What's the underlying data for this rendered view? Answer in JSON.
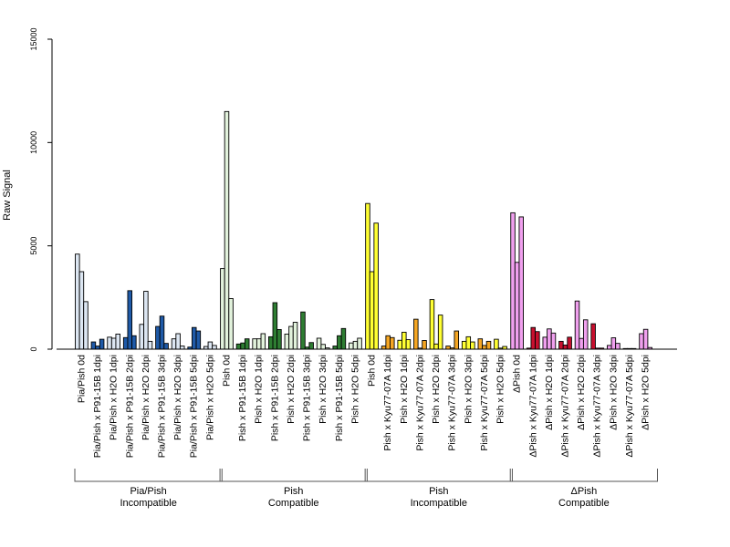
{
  "chart_data": {
    "type": "bar",
    "ylabel": "Raw Signal",
    "ylim": [
      0,
      15000
    ],
    "yticks": [
      0,
      5000,
      10000,
      15000
    ],
    "grid": false,
    "groups": [
      {
        "label_line1": "Pia/Pish",
        "label_line2": "Incompatible",
        "colors": {
          "light": "#dce6f2",
          "dark": "#1f5aa8",
          "text_col": "#dce6f2"
        },
        "categories": [
          {
            "label": "Pia/Pish 0d",
            "tone": "light",
            "values": [
              4600,
              3750,
              2300
            ]
          },
          {
            "label": "Pia/Pish x P91-15B 1dpi",
            "tone": "dark",
            "values": [
              350,
              150,
              480
            ]
          },
          {
            "label": "Pia/Pish x H2O 1dpi",
            "tone": "light",
            "values": [
              580,
              530,
              730
            ]
          },
          {
            "label": "Pia/Pish x P91-15B 2dpi",
            "tone": "dark",
            "values": [
              560,
              2830,
              650
            ]
          },
          {
            "label": "Pia/Pish x H2O 2dpi",
            "tone": "light",
            "values": [
              1200,
              2800,
              380
            ]
          },
          {
            "label": "Pia/Pish x P91-15B 3dpi",
            "tone": "dark",
            "values": [
              1100,
              1600,
              280
            ]
          },
          {
            "label": "Pia/Pish x H2O 3dpi",
            "tone": "light",
            "values": [
              500,
              750,
              150
            ]
          },
          {
            "label": "Pia/Pish x P91-15B 5dpi",
            "tone": "dark",
            "values": [
              100,
              1050,
              880
            ]
          },
          {
            "label": "Pia/Pish x H2O 5dpi",
            "tone": "light",
            "values": [
              130,
              350,
              180
            ]
          }
        ]
      },
      {
        "label_line1": "Pish",
        "label_line2": "Compatible",
        "colors": {
          "light": "#e2f2dc",
          "dark": "#2e7d32"
        },
        "categories": [
          {
            "label": "Pish 0d",
            "tone": "light",
            "values": [
              3900,
              11500,
              2450
            ]
          },
          {
            "label": "Pish x P91-15B 1dpi",
            "tone": "dark",
            "values": [
              250,
              300,
              500
            ]
          },
          {
            "label": "Pish x H2O 1dpi",
            "tone": "light",
            "values": [
              500,
              500,
              750
            ]
          },
          {
            "label": "Pish x P91-15B 2dpi",
            "tone": "dark",
            "values": [
              600,
              2250,
              950
            ]
          },
          {
            "label": "Pish x H2O 2dpi",
            "tone": "light",
            "values": [
              730,
              1100,
              1300
            ]
          },
          {
            "label": "Pish x P91-15B 3dpi",
            "tone": "dark",
            "values": [
              1800,
              100,
              320
            ]
          },
          {
            "label": "Pish x H2O 3dpi",
            "tone": "light",
            "values": [
              530,
              230,
              60
            ]
          },
          {
            "label": "Pish x P91-15B 5dpi",
            "tone": "dark",
            "values": [
              150,
              650,
              1000
            ]
          },
          {
            "label": "Pish x H2O 5dpi",
            "tone": "light",
            "values": [
              300,
              380,
              530
            ]
          }
        ]
      },
      {
        "label_line1": "Pish",
        "label_line2": "Incompatible",
        "colors": {
          "light": "#ffff33",
          "dark": "#f5a623"
        },
        "categories": [
          {
            "label": "Pish 0d",
            "tone": "light",
            "values": [
              7050,
              3750,
              6100
            ]
          },
          {
            "label": "Pish x Kyu77-07A 1dpi",
            "tone": "dark",
            "values": [
              150,
              650,
              560
            ]
          },
          {
            "label": "Pish x H2O 1dpi",
            "tone": "light",
            "values": [
              430,
              820,
              460
            ]
          },
          {
            "label": "Pish x Kyu77-07A 2dpi",
            "tone": "dark",
            "values": [
              1450,
              50,
              420
            ]
          },
          {
            "label": "Pish x H2O 2dpi",
            "tone": "light",
            "values": [
              2400,
              250,
              1650
            ]
          },
          {
            "label": "Pish x Kyu77-07A 3dpi",
            "tone": "dark",
            "values": [
              150,
              60,
              880
            ]
          },
          {
            "label": "Pish x H2O 3dpi",
            "tone": "light",
            "values": [
              380,
              600,
              350
            ]
          },
          {
            "label": "Pish x Kyu77-07A 5dpi",
            "tone": "dark",
            "values": [
              500,
              180,
              380
            ]
          },
          {
            "label": "Pish x H2O 5dpi",
            "tone": "light",
            "values": [
              480,
              50,
              130
            ]
          }
        ]
      },
      {
        "label_line1": "ΔPish",
        "label_line2": "Compatible",
        "colors": {
          "light": "#f0a0ee",
          "dark": "#c8102e"
        },
        "categories": [
          {
            "label": "ΔPish 0d",
            "tone": "light",
            "values": [
              6600,
              4200,
              6400
            ]
          },
          {
            "label": "ΔPish x Kyu77-07A 1dpi",
            "tone": "dark",
            "values": [
              50,
              1050,
              850
            ]
          },
          {
            "label": "ΔPish x H2O 1dpi",
            "tone": "light",
            "values": [
              580,
              980,
              780
            ]
          },
          {
            "label": "ΔPish x Kyu77-07A 2dpi",
            "tone": "dark",
            "values": [
              380,
              200,
              580
            ]
          },
          {
            "label": "ΔPish x H2O 2dpi",
            "tone": "light",
            "values": [
              2330,
              520,
              1420
            ]
          },
          {
            "label": "ΔPish x Kyu77-07A 3dpi",
            "tone": "dark",
            "values": [
              1230,
              50,
              50
            ]
          },
          {
            "label": "ΔPish x H2O 3dpi",
            "tone": "light",
            "values": [
              180,
              550,
              280
            ]
          },
          {
            "label": "ΔPish x Kyu77-07A 5dpi",
            "tone": "dark",
            "values": [
              30,
              30,
              30
            ]
          },
          {
            "label": "ΔPish x H2O 5dpi",
            "tone": "light",
            "values": [
              750,
              960,
              80
            ]
          }
        ]
      }
    ]
  }
}
